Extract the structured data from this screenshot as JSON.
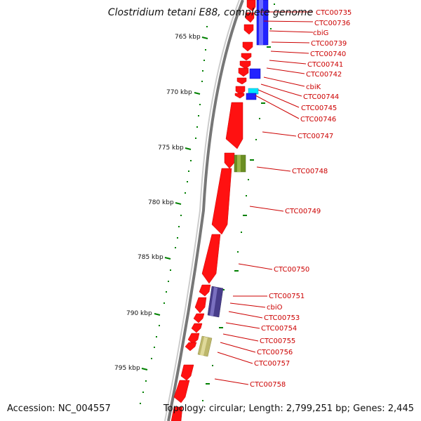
{
  "title": "Clostridium tetani E88, complete genome",
  "accession": "Accession: NC_004557",
  "topology": "Topology: circular; Length: 2,799,251 bp; Genes: 2,445",
  "colors": {
    "backbone": "#888888",
    "gene_forward": "#ff0000",
    "blue_feature": "#0000ff",
    "cyan_feature": "#00e5ff",
    "olive_feature": "#6b8e23",
    "purple_feature": "#483d8b",
    "khaki_feature": "#bdb76b",
    "tick": "#008000",
    "label": "#cc0000"
  },
  "kbp_labels": [
    "765 kbp",
    "770 kbp",
    "775 kbp",
    "780 kbp",
    "785 kbp",
    "790 kbp",
    "795 kbp"
  ],
  "gene_labels": [
    "CTC00735",
    "CTC00736",
    "cbiG",
    "CTC00739",
    "CTC00740",
    "CTC00741",
    "CTC00742",
    "cbiK",
    "CTC00744",
    "CTC00745",
    "CTC00746",
    "CTC00747",
    "CTC00748",
    "CTC00749",
    "CTC00750",
    "CTC00751",
    "cbiO",
    "CTC00753",
    "CTC00754",
    "CTC00755",
    "CTC00756",
    "CTC00757",
    "CTC00758"
  ]
}
